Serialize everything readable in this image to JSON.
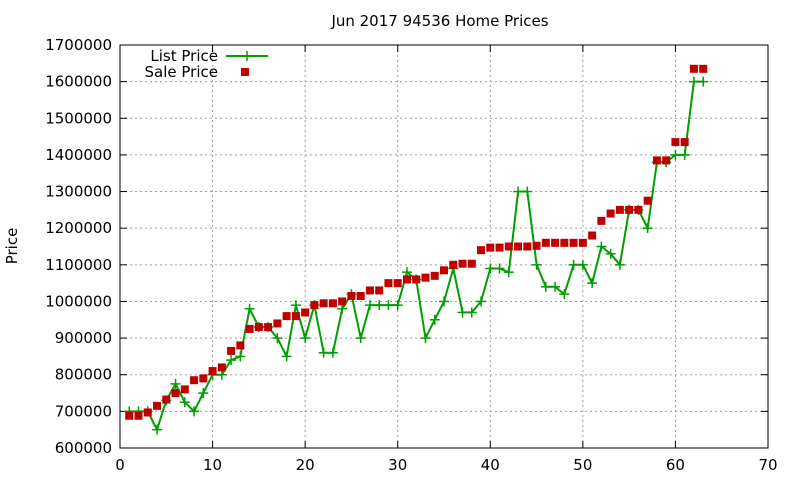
{
  "chart_data": {
    "type": "line",
    "title": "Jun 2017 94536 Home Prices",
    "xlabel": "",
    "ylabel": "Price",
    "xlim": [
      0,
      70
    ],
    "ylim": [
      600000,
      1700000
    ],
    "xticks": [
      0,
      10,
      20,
      30,
      40,
      50,
      60,
      70
    ],
    "yticks": [
      600000,
      700000,
      800000,
      900000,
      1000000,
      1100000,
      1200000,
      1300000,
      1400000,
      1500000,
      1600000,
      1700000
    ],
    "grid": true,
    "legend_position": "top-left",
    "series": [
      {
        "name": "List Price",
        "style": "line+cross",
        "color": "#009e00",
        "x": [
          1,
          2,
          3,
          4,
          5,
          6,
          7,
          8,
          9,
          10,
          11,
          12,
          13,
          14,
          15,
          16,
          17,
          18,
          19,
          20,
          21,
          22,
          23,
          24,
          25,
          26,
          27,
          28,
          29,
          30,
          31,
          32,
          33,
          34,
          35,
          36,
          37,
          38,
          39,
          40,
          41,
          42,
          43,
          44,
          45,
          46,
          47,
          48,
          49,
          50,
          51,
          52,
          53,
          54,
          55,
          56,
          57,
          58,
          59,
          60,
          61,
          62,
          63
        ],
        "y": [
          700000,
          700000,
          700000,
          650000,
          730000,
          775000,
          725000,
          700000,
          750000,
          800000,
          800000,
          840000,
          850000,
          980000,
          930000,
          930000,
          900000,
          850000,
          990000,
          900000,
          990000,
          860000,
          860000,
          980000,
          1020000,
          900000,
          990000,
          990000,
          990000,
          990000,
          1080000,
          1060000,
          900000,
          950000,
          1000000,
          1090000,
          970000,
          970000,
          1000000,
          1090000,
          1090000,
          1080000,
          1300000,
          1300000,
          1100000,
          1040000,
          1040000,
          1020000,
          1100000,
          1100000,
          1050000,
          1150000,
          1130000,
          1100000,
          1250000,
          1250000,
          1200000,
          1380000,
          1380000,
          1400000,
          1400000,
          1600000,
          1600000
        ]
      },
      {
        "name": "Sale Price",
        "style": "square",
        "color": "#c00000",
        "x": [
          1,
          2,
          3,
          4,
          5,
          6,
          7,
          8,
          9,
          10,
          11,
          12,
          13,
          14,
          15,
          16,
          17,
          18,
          19,
          20,
          21,
          22,
          23,
          24,
          25,
          26,
          27,
          28,
          29,
          30,
          31,
          32,
          33,
          34,
          35,
          36,
          37,
          38,
          39,
          40,
          41,
          42,
          43,
          44,
          45,
          46,
          47,
          48,
          49,
          50,
          51,
          52,
          53,
          54,
          55,
          56,
          57,
          58,
          59,
          60,
          61,
          62,
          63
        ],
        "y": [
          688000,
          688000,
          697000,
          715000,
          732000,
          750000,
          760000,
          785000,
          790000,
          810000,
          820000,
          865000,
          880000,
          925000,
          930000,
          930000,
          940000,
          960000,
          960000,
          970000,
          990000,
          995000,
          995000,
          1000000,
          1015000,
          1015000,
          1030000,
          1030000,
          1050000,
          1050000,
          1060000,
          1060000,
          1065000,
          1070000,
          1085000,
          1100000,
          1103000,
          1103000,
          1140000,
          1147000,
          1147000,
          1150000,
          1150000,
          1150000,
          1152000,
          1160000,
          1160000,
          1160000,
          1160000,
          1160000,
          1180000,
          1220000,
          1240000,
          1250000,
          1250000,
          1250000,
          1275000,
          1385000,
          1385000,
          1435000,
          1435000,
          1635000,
          1635000
        ]
      }
    ]
  }
}
